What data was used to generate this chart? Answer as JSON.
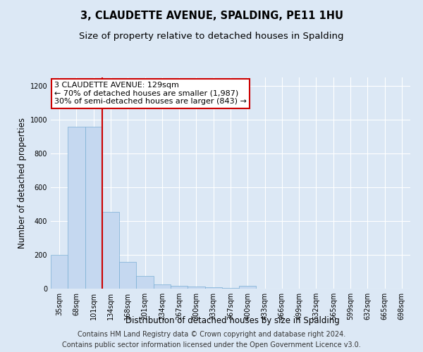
{
  "title": "3, CLAUDETTE AVENUE, SPALDING, PE11 1HU",
  "subtitle": "Size of property relative to detached houses in Spalding",
  "xlabel": "Distribution of detached houses by size in Spalding",
  "ylabel": "Number of detached properties",
  "footer_line1": "Contains HM Land Registry data © Crown copyright and database right 2024.",
  "footer_line2": "Contains public sector information licensed under the Open Government Licence v3.0.",
  "categories": [
    "35sqm",
    "68sqm",
    "101sqm",
    "134sqm",
    "168sqm",
    "201sqm",
    "234sqm",
    "267sqm",
    "300sqm",
    "333sqm",
    "367sqm",
    "400sqm",
    "433sqm",
    "466sqm",
    "499sqm",
    "532sqm",
    "565sqm",
    "599sqm",
    "632sqm",
    "665sqm",
    "698sqm"
  ],
  "values": [
    200,
    960,
    960,
    455,
    158,
    75,
    25,
    18,
    13,
    8,
    5,
    18,
    0,
    0,
    0,
    0,
    0,
    0,
    0,
    0,
    0
  ],
  "bar_color": "#c5d8f0",
  "bar_edge_color": "#7bafd4",
  "vline_x_index": 3,
  "vline_color": "#cc0000",
  "annotation_text": "3 CLAUDETTE AVENUE: 129sqm\n← 70% of detached houses are smaller (1,987)\n30% of semi-detached houses are larger (843) →",
  "annotation_box_color": "white",
  "annotation_box_edge": "#cc0000",
  "annotation_fontsize": 8,
  "ylim": [
    0,
    1250
  ],
  "yticks": [
    0,
    200,
    400,
    600,
    800,
    1000,
    1200
  ],
  "background_color": "#dce8f5",
  "plot_bg_color": "#dce8f5",
  "title_fontsize": 10.5,
  "subtitle_fontsize": 9.5,
  "xlabel_fontsize": 8.5,
  "ylabel_fontsize": 8.5,
  "tick_fontsize": 7,
  "footer_fontsize": 7
}
